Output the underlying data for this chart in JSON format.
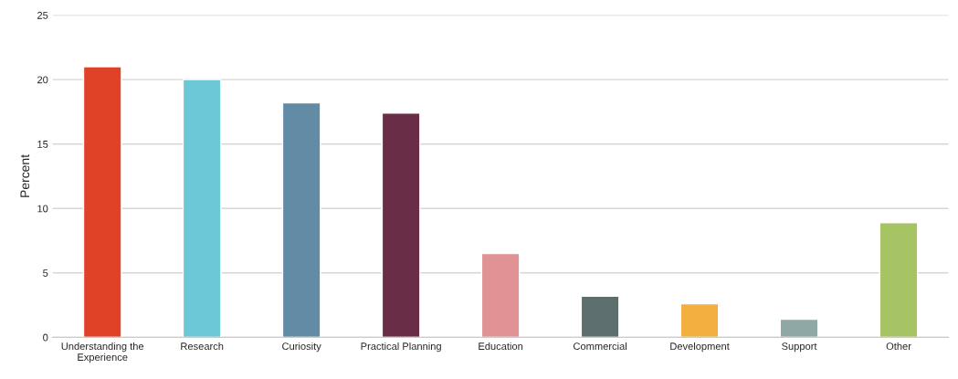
{
  "chart_data": {
    "type": "bar",
    "ylabel": "Percent",
    "categories": [
      "Understanding the\nExperience",
      "Research",
      "Curiosity",
      "Practical Planning",
      "Education",
      "Commercial",
      "Development",
      "Support",
      "Other"
    ],
    "values": [
      21,
      20,
      18.2,
      17.4,
      6.5,
      3.2,
      2.6,
      1.4,
      8.9
    ],
    "colors": [
      "#e04227",
      "#6bc8d6",
      "#628ba5",
      "#6a2d48",
      "#e09294",
      "#5c6f6c",
      "#f3b03e",
      "#8fa8a6",
      "#a6c464"
    ],
    "ylim": [
      0,
      25
    ],
    "yticks": [
      0,
      5,
      10,
      15,
      20,
      25
    ],
    "grid": "y",
    "legend": false
  }
}
